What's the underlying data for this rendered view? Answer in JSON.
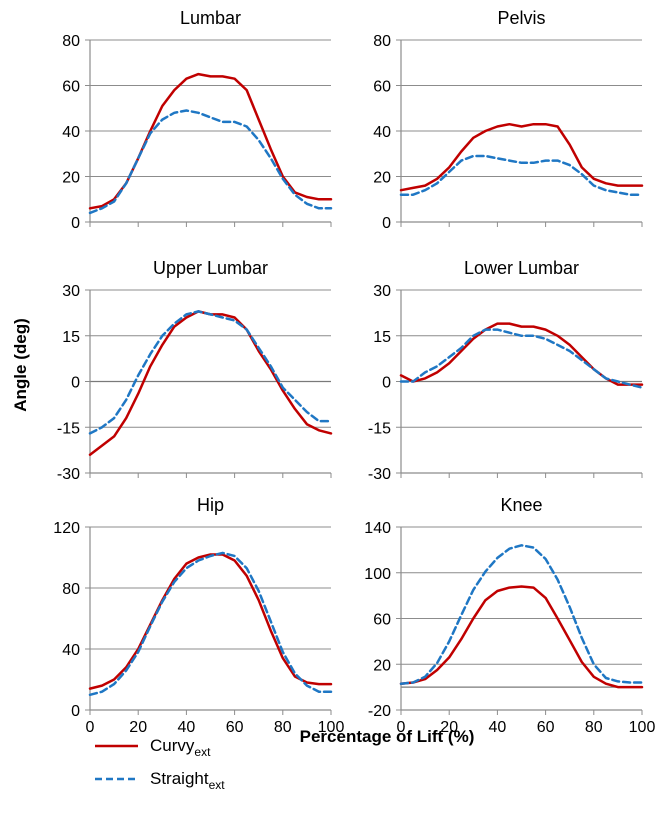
{
  "figure": {
    "ylabel": "Angle (deg)",
    "xlabel": "Percentage of Lift (%)",
    "legend": [
      {
        "base": "Curvy",
        "sub": "ext",
        "color": "#c00000",
        "dash": "solid"
      },
      {
        "base": "Straight",
        "sub": "ext",
        "color": "#1f77c4",
        "dash": "dashed"
      }
    ]
  },
  "chart_data": [
    {
      "type": "line",
      "title": "Lumbar",
      "ylim": [
        0,
        80
      ],
      "yticks": [
        "0",
        "20",
        "40",
        "60",
        "80"
      ],
      "ytick_values": [
        0,
        20,
        40,
        60,
        80
      ],
      "xlim": [
        0,
        100
      ],
      "xticks": [
        "0",
        "20",
        "40",
        "60",
        "80",
        "100"
      ],
      "xtick_values": [
        0,
        20,
        40,
        60,
        80,
        100
      ],
      "show_xticks": false,
      "x": [
        0,
        5,
        10,
        15,
        20,
        25,
        30,
        35,
        40,
        45,
        50,
        55,
        60,
        65,
        70,
        75,
        80,
        85,
        90,
        95,
        100
      ],
      "series": [
        {
          "name": "Curvy_ext",
          "values": [
            6,
            7,
            10,
            17,
            28,
            40,
            51,
            58,
            63,
            65,
            64,
            64,
            63,
            58,
            45,
            32,
            20,
            13,
            11,
            10,
            10
          ]
        },
        {
          "name": "Straight_ext",
          "values": [
            4,
            6,
            9,
            17,
            28,
            39,
            45,
            48,
            49,
            48,
            46,
            44,
            44,
            42,
            36,
            28,
            19,
            12,
            8,
            6,
            6
          ]
        }
      ]
    },
    {
      "type": "line",
      "title": "Pelvis",
      "ylim": [
        0,
        80
      ],
      "yticks": [
        "0",
        "20",
        "40",
        "60",
        "80"
      ],
      "ytick_values": [
        0,
        20,
        40,
        60,
        80
      ],
      "xlim": [
        0,
        100
      ],
      "xticks": [
        "0",
        "20",
        "40",
        "60",
        "80",
        "100"
      ],
      "xtick_values": [
        0,
        20,
        40,
        60,
        80,
        100
      ],
      "show_xticks": false,
      "x": [
        0,
        5,
        10,
        15,
        20,
        25,
        30,
        35,
        40,
        45,
        50,
        55,
        60,
        65,
        70,
        75,
        80,
        85,
        90,
        95,
        100
      ],
      "series": [
        {
          "name": "Curvy_ext",
          "values": [
            14,
            15,
            16,
            19,
            24,
            31,
            37,
            40,
            42,
            43,
            42,
            43,
            43,
            42,
            34,
            24,
            19,
            17,
            16,
            16,
            16
          ]
        },
        {
          "name": "Straight_ext",
          "values": [
            12,
            12,
            14,
            17,
            22,
            27,
            29,
            29,
            28,
            27,
            26,
            26,
            27,
            27,
            25,
            21,
            16,
            14,
            13,
            12,
            12
          ]
        }
      ]
    },
    {
      "type": "line",
      "title": "Upper Lumbar",
      "ylim": [
        -30,
        30
      ],
      "yticks": [
        "-30",
        "-15",
        "0",
        "15",
        "30"
      ],
      "ytick_values": [
        -30,
        -15,
        0,
        15,
        30
      ],
      "xlim": [
        0,
        100
      ],
      "xticks": [
        "0",
        "20",
        "40",
        "60",
        "80",
        "100"
      ],
      "xtick_values": [
        0,
        20,
        40,
        60,
        80,
        100
      ],
      "show_xticks": false,
      "x": [
        0,
        5,
        10,
        15,
        20,
        25,
        30,
        35,
        40,
        45,
        50,
        55,
        60,
        65,
        70,
        75,
        80,
        85,
        90,
        95,
        100
      ],
      "series": [
        {
          "name": "Curvy_ext",
          "values": [
            -24,
            -21,
            -18,
            -12,
            -4,
            5,
            12,
            18,
            21,
            23,
            22,
            22,
            21,
            17,
            10,
            4,
            -3,
            -9,
            -14,
            -16,
            -17
          ]
        },
        {
          "name": "Straight_ext",
          "values": [
            -17,
            -15,
            -12,
            -6,
            2,
            9,
            15,
            19,
            22,
            23,
            22,
            21,
            20,
            17,
            11,
            5,
            -2,
            -6,
            -10,
            -13,
            -13
          ]
        }
      ]
    },
    {
      "type": "line",
      "title": "Lower Lumbar",
      "ylim": [
        -30,
        30
      ],
      "yticks": [
        "-30",
        "-15",
        "0",
        "15",
        "30"
      ],
      "ytick_values": [
        -30,
        -15,
        0,
        15,
        30
      ],
      "xlim": [
        0,
        100
      ],
      "xticks": [
        "0",
        "20",
        "40",
        "60",
        "80",
        "100"
      ],
      "xtick_values": [
        0,
        20,
        40,
        60,
        80,
        100
      ],
      "show_xticks": false,
      "x": [
        0,
        5,
        10,
        15,
        20,
        25,
        30,
        35,
        40,
        45,
        50,
        55,
        60,
        65,
        70,
        75,
        80,
        85,
        90,
        95,
        100
      ],
      "series": [
        {
          "name": "Curvy_ext",
          "values": [
            2,
            0,
            1,
            3,
            6,
            10,
            14,
            17,
            19,
            19,
            18,
            18,
            17,
            15,
            12,
            8,
            4,
            1,
            -1,
            -1,
            -1
          ]
        },
        {
          "name": "Straight_ext",
          "values": [
            0,
            0,
            3,
            5,
            8,
            11,
            15,
            17,
            17,
            16,
            15,
            15,
            14,
            12,
            10,
            7,
            4,
            1,
            0,
            -1,
            -2
          ]
        }
      ]
    },
    {
      "type": "line",
      "title": "Hip",
      "ylim": [
        0,
        120
      ],
      "yticks": [
        "0",
        "40",
        "80",
        "120"
      ],
      "ytick_values": [
        0,
        40,
        80,
        120
      ],
      "xlim": [
        0,
        100
      ],
      "xticks": [
        "0",
        "20",
        "40",
        "60",
        "80",
        "100"
      ],
      "xtick_values": [
        0,
        20,
        40,
        60,
        80,
        100
      ],
      "show_xticks": true,
      "x": [
        0,
        5,
        10,
        15,
        20,
        25,
        30,
        35,
        40,
        45,
        50,
        55,
        60,
        65,
        70,
        75,
        80,
        85,
        90,
        95,
        100
      ],
      "series": [
        {
          "name": "Curvy_ext",
          "values": [
            14,
            16,
            20,
            28,
            40,
            56,
            72,
            86,
            96,
            100,
            102,
            102,
            98,
            88,
            72,
            52,
            34,
            22,
            18,
            17,
            17
          ]
        },
        {
          "name": "Straight_ext",
          "values": [
            10,
            12,
            17,
            26,
            38,
            55,
            71,
            84,
            93,
            98,
            101,
            103,
            101,
            93,
            78,
            58,
            38,
            24,
            16,
            12,
            12
          ]
        }
      ]
    },
    {
      "type": "line",
      "title": "Knee",
      "ylim": [
        -20,
        140
      ],
      "yticks": [
        "-20",
        "20",
        "60",
        "100",
        "140"
      ],
      "ytick_values": [
        -20,
        20,
        60,
        100,
        140
      ],
      "xlim": [
        0,
        100
      ],
      "xticks": [
        "0",
        "20",
        "40",
        "60",
        "80",
        "100"
      ],
      "xtick_values": [
        0,
        20,
        40,
        60,
        80,
        100
      ],
      "show_xticks": true,
      "x": [
        0,
        5,
        10,
        15,
        20,
        25,
        30,
        35,
        40,
        45,
        50,
        55,
        60,
        65,
        70,
        75,
        80,
        85,
        90,
        95,
        100
      ],
      "series": [
        {
          "name": "Curvy_ext",
          "values": [
            3,
            4,
            7,
            15,
            26,
            42,
            60,
            76,
            84,
            87,
            88,
            87,
            78,
            60,
            41,
            22,
            9,
            3,
            0,
            0,
            0
          ]
        },
        {
          "name": "Straight_ext",
          "values": [
            3,
            4,
            9,
            21,
            40,
            63,
            85,
            101,
            113,
            121,
            124,
            122,
            112,
            94,
            70,
            43,
            20,
            8,
            5,
            4,
            4
          ]
        }
      ]
    }
  ]
}
